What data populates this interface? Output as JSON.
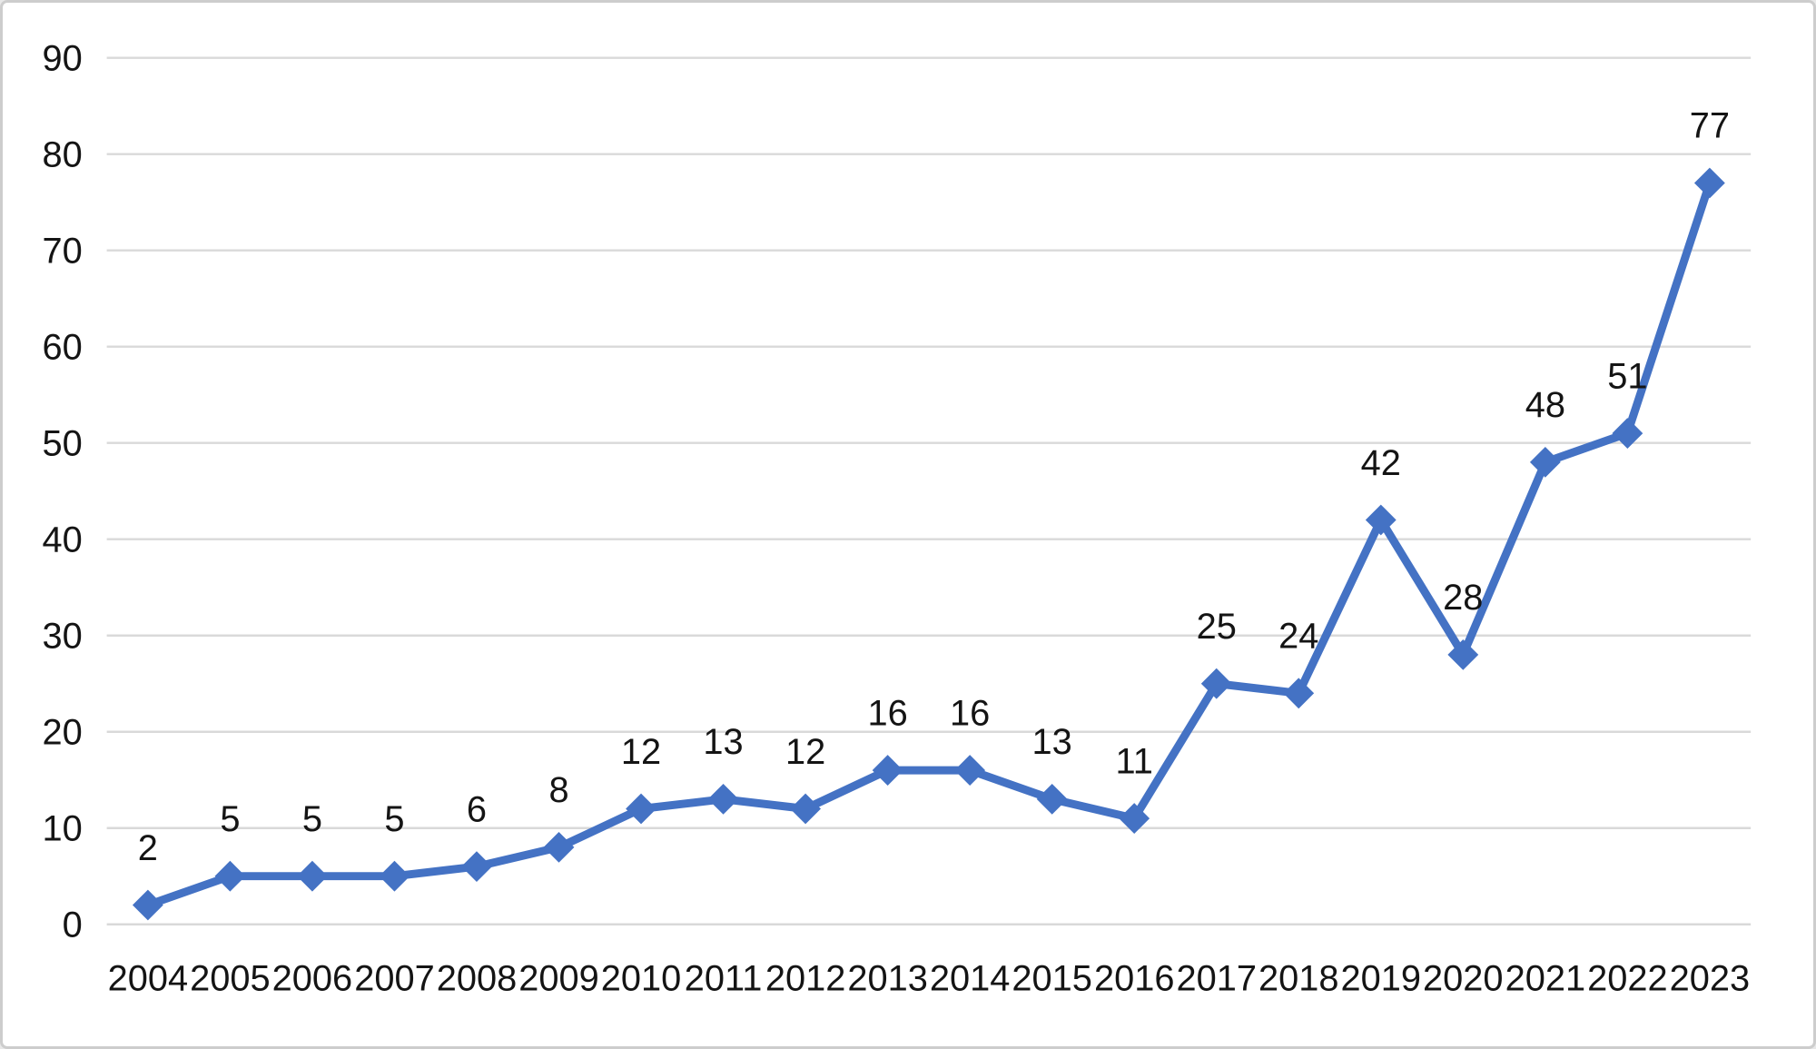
{
  "chart_data": {
    "type": "line",
    "title": "",
    "subtitle": "",
    "xlabel": "",
    "ylabel": "",
    "categories": [
      "2004",
      "2005",
      "2006",
      "2007",
      "2008",
      "2009",
      "2010",
      "2011",
      "2012",
      "2013",
      "2014",
      "2015",
      "2016",
      "2017",
      "2018",
      "2019",
      "2020",
      "2021",
      "2022",
      "2023"
    ],
    "series": [
      {
        "name": "",
        "values": [
          2,
          5,
          5,
          5,
          6,
          8,
          12,
          13,
          12,
          16,
          16,
          13,
          11,
          25,
          24,
          42,
          28,
          48,
          51,
          77
        ]
      }
    ],
    "data_labels_visible": true,
    "data_label_position": "above",
    "marker_shape": "diamond",
    "ylim": [
      0,
      90
    ],
    "yticks": [
      0,
      10,
      20,
      30,
      40,
      50,
      60,
      70,
      80,
      90
    ],
    "grid": "horizontal-only",
    "legend_position": "none",
    "colors": {
      "line": "#4472C4",
      "marker": "#4472C4",
      "gridline": "#D9D9D9",
      "axis_text": "#141414",
      "data_label_text": "#141414",
      "background": "#FFFFFF",
      "frame_border": "#CDCDCD"
    }
  }
}
